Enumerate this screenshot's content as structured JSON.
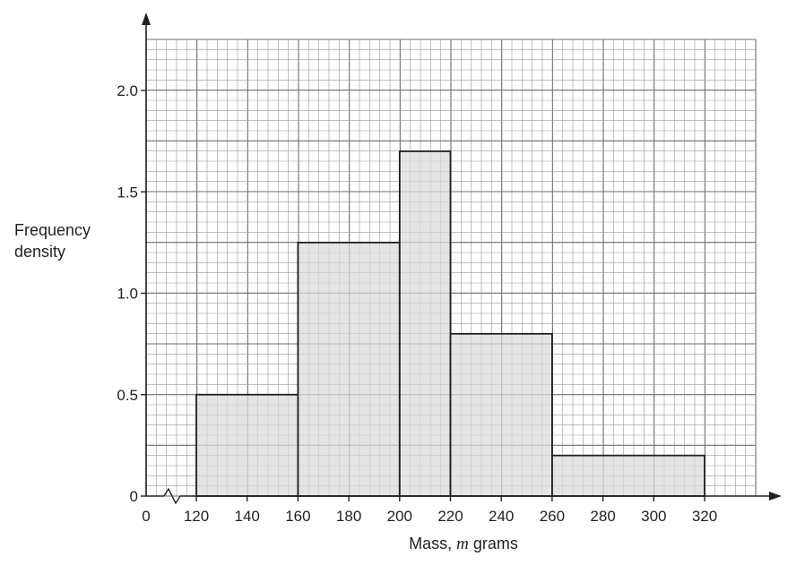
{
  "chart_data": {
    "type": "bar",
    "subtype": "histogram",
    "xlabel_prefix": "Mass, ",
    "xlabel_var": "m",
    "xlabel_suffix": " grams",
    "ylabel_lines": [
      "Frequency",
      "density"
    ],
    "x_axis_start_label": "0",
    "axis_break": true,
    "xlim": [
      110,
      330
    ],
    "ylim": [
      0,
      2.0
    ],
    "x_ticks": [
      120,
      140,
      160,
      180,
      200,
      220,
      240,
      260,
      280,
      300,
      320
    ],
    "y_ticks": [
      {
        "value": 0,
        "label": "0"
      },
      {
        "value": 0.5,
        "label": "0.5"
      },
      {
        "value": 1.0,
        "label": "1.0"
      },
      {
        "value": 1.5,
        "label": "1.5"
      },
      {
        "value": 2.0,
        "label": "2.0"
      }
    ],
    "bins": [
      {
        "from": 120,
        "to": 160,
        "density": 0.5
      },
      {
        "from": 160,
        "to": 200,
        "density": 1.25
      },
      {
        "from": 200,
        "to": 220,
        "density": 1.7
      },
      {
        "from": 220,
        "to": 260,
        "density": 0.8
      },
      {
        "from": 260,
        "to": 320,
        "density": 0.2
      }
    ],
    "grid": true,
    "colors": {
      "bar_fill": "#d9d9da",
      "bar_stroke": "#231f20",
      "grid_minor": "#9a9a9c",
      "grid_major": "#6d6e70",
      "axis": "#231f20"
    }
  }
}
